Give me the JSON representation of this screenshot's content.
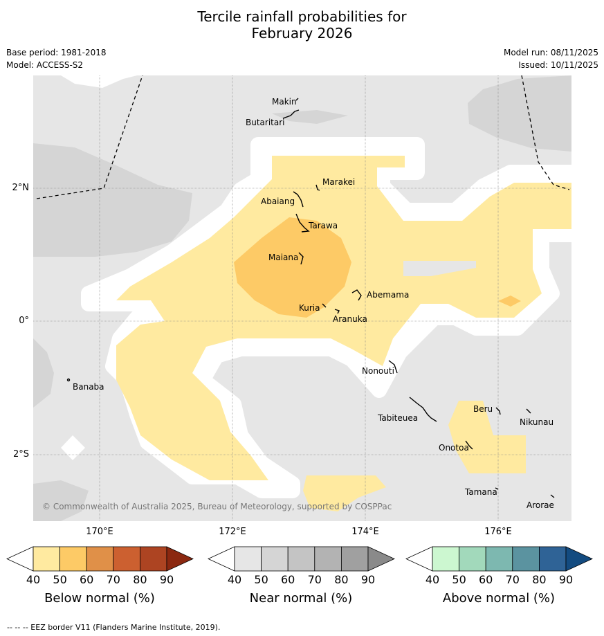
{
  "title_line1": "Tercile rainfall probabilities for",
  "title_line2": "February 2026",
  "base_period": "Base period: 1981-2018",
  "model": "Model: ACCESS-S2",
  "model_run": "Model run: 08/11/2025",
  "issued": "Issued: 10/11/2025",
  "copyright": "© Commonwealth of Australia 2025, Bureau of Meteorology, supported by COSPPac",
  "lon_labels": [
    "170°E",
    "172°E",
    "174°E",
    "176°E"
  ],
  "lat_labels": [
    "2°N",
    "0°",
    "2°S"
  ],
  "islands": {
    "makin": "Makin",
    "butaritari": "Butaritari",
    "marakei": "Marakei",
    "abaiang": "Abaiang",
    "tarawa": "Tarawa",
    "maiana": "Maiana",
    "abemama": "Abemama",
    "kuria": "Kuria",
    "aranuka": "Aranuka",
    "banaba": "Banaba",
    "nonouti": "Nonouti",
    "beru": "Beru",
    "nikunau": "Nikunau",
    "tabiteuea": "Tabiteuea",
    "onotoa": "Onotoa",
    "tamana": "Tamana",
    "arorae": "Arorae"
  },
  "colorbars": {
    "below": {
      "label": "Below normal (%)",
      "ticks": [
        "40",
        "50",
        "60",
        "70",
        "80",
        "90"
      ],
      "colors": [
        "#ffeaa0",
        "#fdca66",
        "#e09048",
        "#cc6030",
        "#ad4422",
        "#8b2810"
      ]
    },
    "near": {
      "label": "Near normal (%)",
      "ticks": [
        "40",
        "50",
        "60",
        "70",
        "80",
        "90"
      ],
      "colors": [
        "#e6e6e6",
        "#d5d5d5",
        "#c4c4c4",
        "#b3b3b3",
        "#a0a0a0",
        "#8a8a8a"
      ]
    },
    "above": {
      "label": "Above normal (%)",
      "ticks": [
        "40",
        "50",
        "60",
        "70",
        "80",
        "90"
      ],
      "colors": [
        "#ccf7d0",
        "#a2d9bb",
        "#7db8b0",
        "#5b93a0",
        "#2f6396",
        "#134b80"
      ]
    }
  },
  "footer": "--  --  -- EEZ border V11 (Flanders Marine Institute, 2019)."
}
